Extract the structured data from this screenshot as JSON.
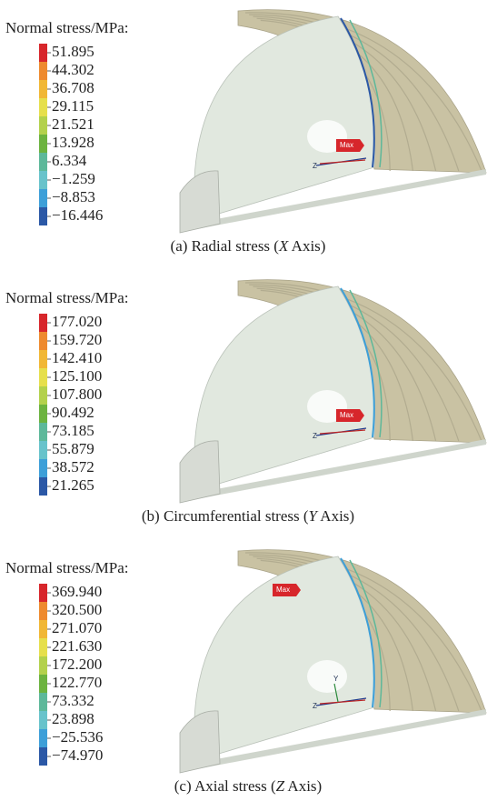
{
  "panels": [
    {
      "legend_title": "Normal stress/MPa:",
      "legend_labels": [
        "51.895",
        "44.302",
        "36.708",
        "29.115",
        "21.521",
        "13.928",
        "6.334",
        "−1.259",
        "−8.853",
        "−16.446"
      ],
      "caption_prefix": "(a) Radial stress (",
      "caption_axis": "X",
      "caption_suffix": " Axis)",
      "max_label": "Max",
      "axis_labels": [
        "Z"
      ]
    },
    {
      "legend_title": "Normal stress/MPa:",
      "legend_labels": [
        "177.020",
        "159.720",
        "142.410",
        "125.100",
        "107.800",
        "90.492",
        "73.185",
        "55.879",
        "38.572",
        "21.265"
      ],
      "caption_prefix": "(b) Circumferential stress (",
      "caption_axis": "Y",
      "caption_suffix": " Axis)",
      "max_label": "Max",
      "axis_labels": [
        "Z"
      ]
    },
    {
      "legend_title": "Normal stress/MPa:",
      "legend_labels": [
        "369.940",
        "320.500",
        "271.070",
        "221.630",
        "172.200",
        "122.770",
        "73.332",
        "23.898",
        "−25.536",
        "−74.970"
      ],
      "caption_prefix": "(c) Axial stress (",
      "caption_axis": "Z",
      "caption_suffix": " Axis)",
      "max_label": "Max",
      "axis_labels": [
        "Z",
        "Y"
      ]
    }
  ]
}
